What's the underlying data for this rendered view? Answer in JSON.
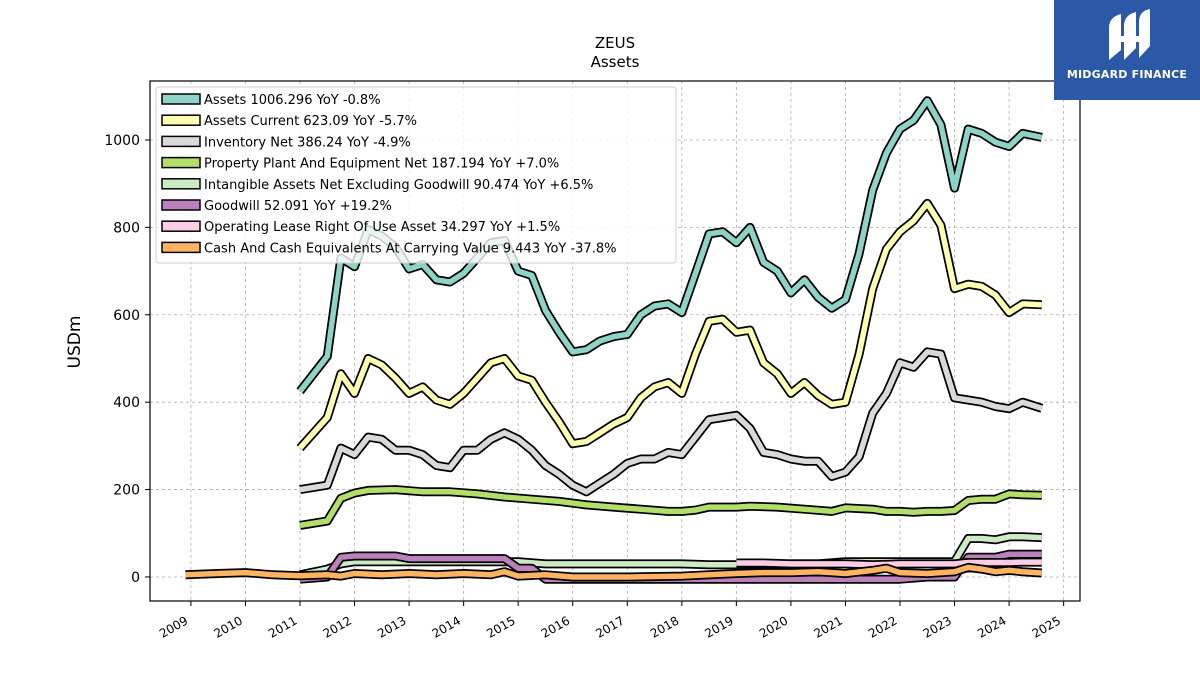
{
  "brand": {
    "name": "MIDGARD FINANCE",
    "bg_color": "#2b59a8"
  },
  "chart_data": {
    "type": "line",
    "title": "ZEUS",
    "subtitle": "Assets",
    "xlabel": "",
    "ylabel": "USDm",
    "xlim": [
      2008.25,
      2025.3
    ],
    "ylim": [
      -55,
      1135
    ],
    "x_ticks": [
      2009,
      2010,
      2011,
      2012,
      2013,
      2014,
      2015,
      2016,
      2017,
      2018,
      2019,
      2020,
      2021,
      2022,
      2023,
      2024,
      2025
    ],
    "y_ticks": [
      0,
      200,
      400,
      600,
      800,
      1000
    ],
    "grid": true,
    "legend_position": "top-left",
    "series": [
      {
        "name": "Assets",
        "legend_label": "Assets  1006.296 YoY -0.8%",
        "color": "#8dd3c7",
        "x": [
          2011.0,
          2011.5,
          2011.75,
          2012.0,
          2012.25,
          2012.5,
          2012.75,
          2013.0,
          2013.25,
          2013.5,
          2013.75,
          2014.0,
          2014.25,
          2014.5,
          2014.75,
          2015.0,
          2015.25,
          2015.5,
          2015.75,
          2016.0,
          2016.25,
          2016.5,
          2016.75,
          2017.0,
          2017.25,
          2017.5,
          2017.75,
          2018.0,
          2018.25,
          2018.5,
          2018.75,
          2019.0,
          2019.25,
          2019.5,
          2019.75,
          2020.0,
          2020.25,
          2020.5,
          2020.75,
          2021.0,
          2021.25,
          2021.5,
          2021.75,
          2022.0,
          2022.25,
          2022.5,
          2022.75,
          2023.0,
          2023.25,
          2023.5,
          2023.75,
          2024.0,
          2024.25,
          2024.6
        ],
        "values": [
          425,
          505,
          730,
          710,
          795,
          780,
          755,
          705,
          715,
          680,
          675,
          695,
          730,
          765,
          770,
          700,
          690,
          610,
          560,
          515,
          520,
          540,
          550,
          555,
          600,
          620,
          625,
          605,
          695,
          785,
          790,
          765,
          800,
          720,
          700,
          650,
          680,
          640,
          615,
          635,
          740,
          885,
          970,
          1025,
          1045,
          1090,
          1035,
          890,
          1025,
          1015,
          995,
          985,
          1015,
          1006
        ]
      },
      {
        "name": "Assets Current",
        "legend_label": "Assets Current  623.09 YoY -5.7%",
        "color": "#ffffb3",
        "x": [
          2011.0,
          2011.5,
          2011.75,
          2012.0,
          2012.25,
          2012.5,
          2012.75,
          2013.0,
          2013.25,
          2013.5,
          2013.75,
          2014.0,
          2014.25,
          2014.5,
          2014.75,
          2015.0,
          2015.25,
          2015.5,
          2015.75,
          2016.0,
          2016.25,
          2016.5,
          2016.75,
          2017.0,
          2017.25,
          2017.5,
          2017.75,
          2018.0,
          2018.25,
          2018.5,
          2018.75,
          2019.0,
          2019.25,
          2019.5,
          2019.75,
          2020.0,
          2020.25,
          2020.5,
          2020.75,
          2021.0,
          2021.25,
          2021.5,
          2021.75,
          2022.0,
          2022.25,
          2022.5,
          2022.75,
          2023.0,
          2023.25,
          2023.5,
          2023.75,
          2024.0,
          2024.25,
          2024.6
        ],
        "values": [
          295,
          365,
          465,
          420,
          500,
          485,
          455,
          420,
          435,
          405,
          395,
          420,
          455,
          490,
          500,
          460,
          450,
          400,
          355,
          305,
          310,
          330,
          350,
          365,
          410,
          435,
          445,
          420,
          510,
          585,
          590,
          560,
          565,
          490,
          465,
          420,
          445,
          415,
          395,
          400,
          510,
          660,
          750,
          790,
          815,
          855,
          805,
          660,
          670,
          665,
          645,
          605,
          625,
          623
        ]
      },
      {
        "name": "Inventory Net",
        "legend_label": "Inventory Net  386.24 YoY -4.9%",
        "color": "#d9d9d9",
        "x": [
          2011.0,
          2011.5,
          2011.75,
          2012.0,
          2012.25,
          2012.5,
          2012.75,
          2013.0,
          2013.25,
          2013.5,
          2013.75,
          2014.0,
          2014.25,
          2014.5,
          2014.75,
          2015.0,
          2015.25,
          2015.5,
          2015.75,
          2016.0,
          2016.25,
          2016.5,
          2016.75,
          2017.0,
          2017.25,
          2017.5,
          2017.75,
          2018.0,
          2018.25,
          2018.5,
          2018.75,
          2019.0,
          2019.25,
          2019.5,
          2019.75,
          2020.0,
          2020.25,
          2020.5,
          2020.75,
          2021.0,
          2021.25,
          2021.5,
          2021.75,
          2022.0,
          2022.25,
          2022.5,
          2022.75,
          2023.0,
          2023.25,
          2023.5,
          2023.75,
          2024.0,
          2024.25,
          2024.6
        ],
        "values": [
          200,
          210,
          295,
          280,
          320,
          315,
          290,
          290,
          280,
          255,
          250,
          290,
          290,
          315,
          330,
          315,
          290,
          255,
          235,
          210,
          195,
          215,
          235,
          260,
          270,
          270,
          285,
          280,
          320,
          360,
          365,
          370,
          340,
          285,
          280,
          270,
          265,
          265,
          230,
          240,
          275,
          375,
          420,
          490,
          480,
          515,
          510,
          410,
          405,
          400,
          390,
          385,
          400,
          386
        ]
      },
      {
        "name": "Property Plant And Equipment Net",
        "legend_label": "Property Plant And Equipment Net  187.194 YoY +7.0%",
        "color": "#b3de69",
        "x": [
          2011.0,
          2011.5,
          2011.75,
          2012.0,
          2012.25,
          2012.75,
          2013.25,
          2013.75,
          2014.25,
          2014.75,
          2015.25,
          2015.75,
          2016.25,
          2016.75,
          2017.25,
          2017.75,
          2018.0,
          2018.25,
          2018.5,
          2019.0,
          2019.25,
          2019.75,
          2020.25,
          2020.75,
          2021.0,
          2021.5,
          2021.75,
          2022.0,
          2022.25,
          2022.5,
          2022.75,
          2023.0,
          2023.25,
          2023.5,
          2023.75,
          2024.0,
          2024.25,
          2024.6
        ],
        "values": [
          118,
          128,
          180,
          192,
          198,
          200,
          195,
          195,
          190,
          183,
          178,
          173,
          165,
          160,
          155,
          150,
          150,
          153,
          160,
          160,
          162,
          160,
          155,
          150,
          158,
          155,
          150,
          150,
          148,
          150,
          150,
          152,
          175,
          178,
          178,
          190,
          188,
          187
        ]
      },
      {
        "name": "Intangible Assets Net Excluding Goodwill",
        "legend_label": "Intangible Assets Net Excluding Goodwill  90.474 YoY +6.5%",
        "color": "#ccebc5",
        "x": [
          2011.0,
          2011.5,
          2011.75,
          2012.0,
          2012.5,
          2013.0,
          2013.5,
          2014.0,
          2014.5,
          2015.0,
          2015.5,
          2016.0,
          2016.5,
          2017.0,
          2017.5,
          2018.0,
          2018.5,
          2019.0,
          2019.5,
          2020.0,
          2020.5,
          2021.0,
          2021.5,
          2022.0,
          2022.5,
          2023.0,
          2023.25,
          2023.5,
          2023.75,
          2024.0,
          2024.25,
          2024.6
        ],
        "values": [
          5,
          18,
          30,
          35,
          35,
          35,
          35,
          35,
          35,
          35,
          30,
          30,
          30,
          30,
          30,
          30,
          28,
          28,
          28,
          30,
          30,
          35,
          35,
          35,
          35,
          35,
          88,
          88,
          85,
          92,
          92,
          90
        ]
      },
      {
        "name": "Goodwill",
        "legend_label": "Goodwill  52.091 YoY +19.2%",
        "color": "#bc80bd",
        "x": [
          2011.0,
          2011.5,
          2011.75,
          2012.0,
          2012.5,
          2012.75,
          2013.0,
          2013.5,
          2014.0,
          2014.5,
          2014.75,
          2015.0,
          2015.25,
          2015.5,
          2016.0,
          2017.0,
          2018.0,
          2018.5,
          2019.0,
          2020.0,
          2021.0,
          2022.0,
          2022.5,
          2023.0,
          2023.25,
          2023.5,
          2023.75,
          2024.0,
          2024.25,
          2024.6
        ],
        "values": [
          -5,
          0,
          45,
          48,
          48,
          48,
          42,
          42,
          42,
          42,
          42,
          20,
          20,
          -5,
          -5,
          -5,
          -5,
          -5,
          -5,
          -5,
          -5,
          -5,
          0,
          0,
          45,
          45,
          45,
          52,
          52,
          52
        ]
      },
      {
        "name": "Operating Lease Right Of Use Asset",
        "legend_label": "Operating Lease Right Of Use Asset  34.297 YoY +1.5%",
        "color": "#fccde5",
        "x": [
          2019.0,
          2019.5,
          2020.0,
          2020.5,
          2021.0,
          2021.5,
          2022.0,
          2022.5,
          2023.0,
          2023.25,
          2023.5,
          2023.75,
          2024.0,
          2024.25,
          2024.6
        ],
        "values": [
          32,
          32,
          30,
          30,
          30,
          28,
          30,
          30,
          30,
          33,
          33,
          33,
          33,
          34,
          34
        ]
      },
      {
        "name": "Cash And Cash Equivalents At Carrying Value",
        "legend_label": "Cash And Cash Equivalents At Carrying Value  9.443 YoY -37.8%",
        "color": "#fdb462",
        "x": [
          2008.9,
          2009.5,
          2010.0,
          2010.5,
          2011.0,
          2011.5,
          2011.75,
          2012.0,
          2012.5,
          2013.0,
          2013.5,
          2014.0,
          2014.5,
          2014.75,
          2015.0,
          2015.5,
          2016.0,
          2017.0,
          2018.0,
          2018.5,
          2019.0,
          2019.5,
          2020.0,
          2020.5,
          2021.0,
          2021.5,
          2021.75,
          2022.0,
          2022.5,
          2023.0,
          2023.25,
          2023.5,
          2023.75,
          2024.0,
          2024.25,
          2024.6
        ],
        "values": [
          5,
          8,
          10,
          5,
          3,
          5,
          2,
          8,
          5,
          8,
          5,
          8,
          5,
          12,
          2,
          5,
          0,
          0,
          2,
          5,
          8,
          10,
          10,
          12,
          8,
          15,
          20,
          10,
          8,
          12,
          22,
          18,
          12,
          15,
          12,
          9
        ]
      }
    ]
  }
}
